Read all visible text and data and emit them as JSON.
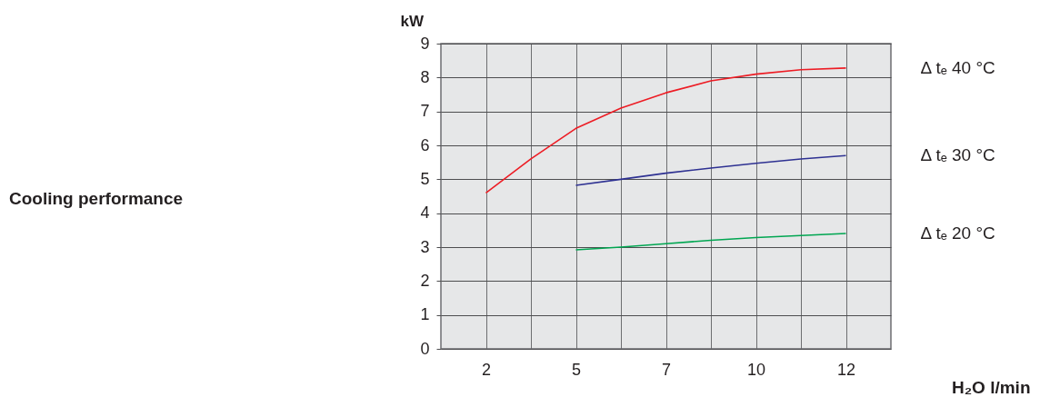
{
  "chart_data": {
    "type": "line",
    "title": "Cooling performance",
    "xlabel": "H₂O l/min",
    "ylabel": "kW",
    "categories": [
      "2",
      null,
      "5",
      null,
      "7",
      null,
      "10",
      null,
      "12"
    ],
    "series": [
      {
        "name": "Δ tₑ 40 °C",
        "color": "#ed1c24",
        "values": [
          4.6,
          5.6,
          6.5,
          7.1,
          7.55,
          7.9,
          8.1,
          8.23,
          8.28
        ]
      },
      {
        "name": "Δ tₑ 30 °C",
        "color": "#2e3192",
        "values": [
          null,
          null,
          4.82,
          5.0,
          5.18,
          5.33,
          5.47,
          5.6,
          5.7
        ]
      },
      {
        "name": "Δ tₑ 20 °C",
        "color": "#00a651",
        "values": [
          null,
          null,
          2.92,
          3.0,
          3.1,
          3.2,
          3.28,
          3.34,
          3.4
        ]
      }
    ],
    "ylim": [
      0,
      9
    ],
    "yticks": [
      0,
      1,
      2,
      3,
      4,
      5,
      6,
      7,
      8,
      9
    ],
    "grid": true,
    "legend": false,
    "marker": "none",
    "line_style": "solid"
  }
}
